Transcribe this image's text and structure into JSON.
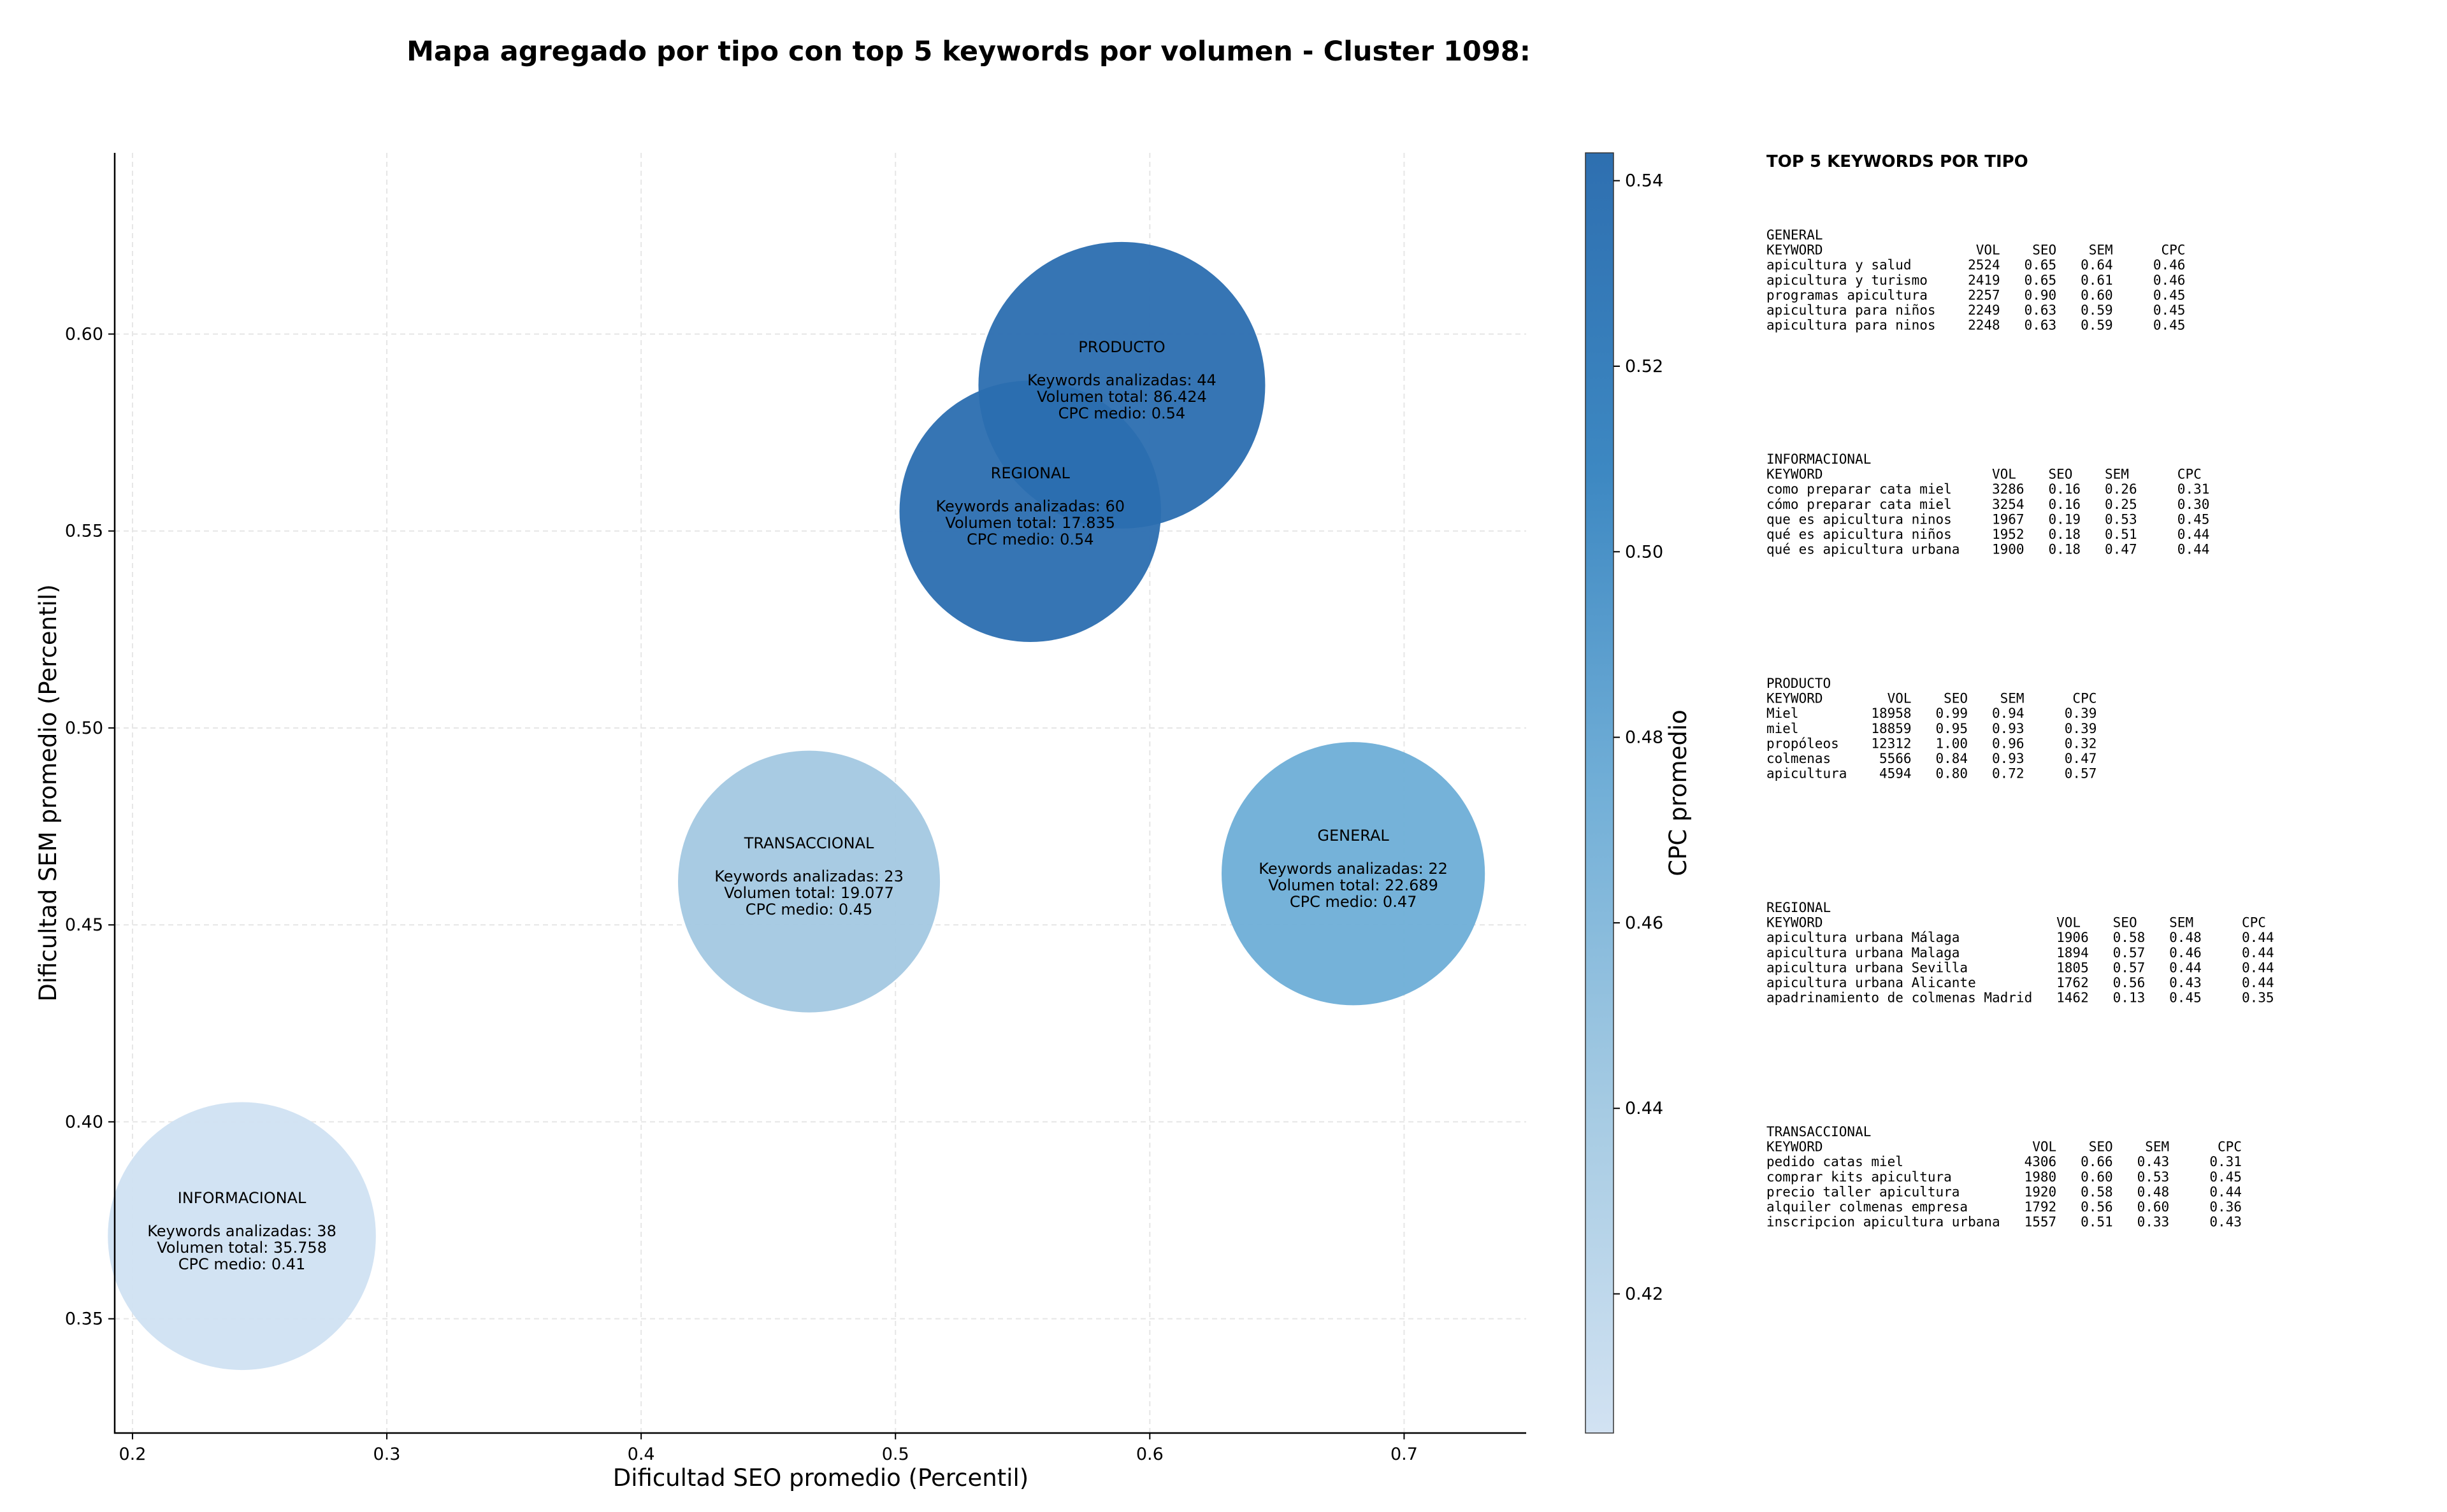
{
  "chart_data": {
    "type": "scatter",
    "title": "Mapa agregado por tipo con top 5 keywords por volumen - Cluster 1098:",
    "xlabel": "Dificultad SEO promedio (Percentil)",
    "ylabel": "Dificultad SEM promedio (Percentil)",
    "xlim": [
      0.193,
      0.748
    ],
    "ylim": [
      0.321,
      0.646
    ],
    "xticks": [
      "0.2",
      "0.3",
      "0.4",
      "0.5",
      "0.6",
      "0.7"
    ],
    "yticks": [
      "0.35",
      "0.40",
      "0.45",
      "0.50",
      "0.55",
      "0.60"
    ],
    "grid": true,
    "colorbar": {
      "label": "CPC promedio",
      "range": [
        0.405,
        0.543
      ],
      "ticks": [
        "0.42",
        "0.44",
        "0.46",
        "0.48",
        "0.50",
        "0.52",
        "0.54"
      ],
      "colormap": [
        "#d2e2f2",
        "#a6cbe3",
        "#72afd7",
        "#3d88c2",
        "#2e6fb0"
      ]
    },
    "points": [
      {
        "label": "INFORMACIONAL",
        "x": 0.243,
        "y": 0.371,
        "keywords_line": "Keywords analizadas: 38",
        "volume_line": "Volumen total: 35.758",
        "cpc_line": "CPC medio: 0.41",
        "cpc": 0.41,
        "volume": 35758,
        "color": "#d0e1f2"
      },
      {
        "label": "TRANSACCIONAL",
        "x": 0.466,
        "y": 0.461,
        "keywords_line": "Keywords analizadas: 23",
        "volume_line": "Volumen total: 19.077",
        "cpc_line": "CPC medio: 0.45",
        "cpc": 0.45,
        "volume": 19077,
        "color": "#a3c8e2"
      },
      {
        "label": "GENERAL",
        "x": 0.68,
        "y": 0.463,
        "keywords_line": "Keywords analizadas: 22",
        "volume_line": "Volumen total: 22.689",
        "cpc_line": "CPC medio: 0.47",
        "cpc": 0.47,
        "volume": 22689,
        "color": "#6eaed7"
      },
      {
        "label": "PRODUCTO",
        "x": 0.589,
        "y": 0.587,
        "keywords_line": "Keywords analizadas: 44",
        "volume_line": "Volumen total: 86.424",
        "cpc_line": "CPC medio: 0.54",
        "cpc": 0.54,
        "volume": 86424,
        "color": "#2b6eb0"
      },
      {
        "label": "REGIONAL",
        "x": 0.553,
        "y": 0.555,
        "keywords_line": "Keywords analizadas: 60",
        "volume_line": "Volumen total: 17.835",
        "cpc_line": "CPC medio: 0.54",
        "cpc": 0.54,
        "volume": 17835,
        "color": "#2b6eb0"
      }
    ]
  },
  "side_panel": {
    "title": "TOP 5 KEYWORDS POR TIPO",
    "groups": [
      {
        "name": "GENERAL",
        "header": "KEYWORD                   VOL    SEO    SEM      CPC",
        "rows": [
          "apicultura y salud       2524   0.65   0.64     0.46",
          "apicultura y turismo     2419   0.65   0.61     0.46",
          "programas apicultura     2257   0.90   0.60     0.45",
          "apicultura para niños    2249   0.63   0.59     0.45",
          "apicultura para ninos    2248   0.63   0.59     0.45"
        ]
      },
      {
        "name": "INFORMACIONAL",
        "header": "KEYWORD                     VOL    SEO    SEM      CPC",
        "rows": [
          "como preparar cata miel     3286   0.16   0.26     0.31",
          "cómo preparar cata miel     3254   0.16   0.25     0.30",
          "que es apicultura ninos     1967   0.19   0.53     0.45",
          "qué es apicultura niños     1952   0.18   0.51     0.44",
          "qué es apicultura urbana    1900   0.18   0.47     0.44"
        ]
      },
      {
        "name": "PRODUCTO",
        "header": "KEYWORD        VOL    SEO    SEM      CPC",
        "rows": [
          "Miel         18958   0.99   0.94     0.39",
          "miel         18859   0.95   0.93     0.39",
          "propóleos    12312   1.00   0.96     0.32",
          "colmenas      5566   0.84   0.93     0.47",
          "apicultura    4594   0.80   0.72     0.57"
        ]
      },
      {
        "name": "REGIONAL",
        "header": "KEYWORD                             VOL    SEO    SEM      CPC",
        "rows": [
          "apicultura urbana Málaga            1906   0.58   0.48     0.44",
          "apicultura urbana Malaga            1894   0.57   0.46     0.44",
          "apicultura urbana Sevilla           1805   0.57   0.44     0.44",
          "apicultura urbana Alicante          1762   0.56   0.43     0.44",
          "apadrinamiento de colmenas Madrid   1462   0.13   0.45     0.35"
        ]
      },
      {
        "name": "TRANSACCIONAL",
        "header": "KEYWORD                          VOL    SEO    SEM      CPC",
        "rows": [
          "pedido catas miel               4306   0.66   0.43     0.31",
          "comprar kits apicultura         1980   0.60   0.53     0.45",
          "precio taller apicultura        1920   0.58   0.48     0.44",
          "alquiler colmenas empresa       1792   0.56   0.60     0.36",
          "inscripcion apicultura urbana   1557   0.51   0.33     0.43"
        ]
      }
    ]
  }
}
